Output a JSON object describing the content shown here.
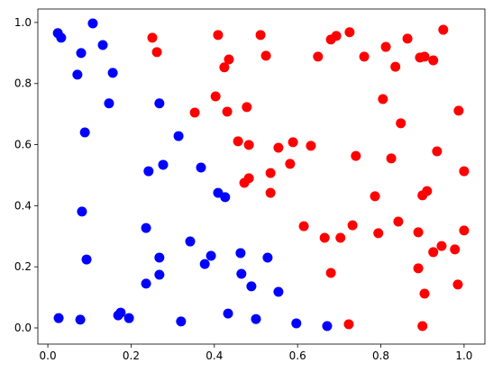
{
  "chart_data": {
    "type": "scatter",
    "xlim": [
      -0.024,
      1.05
    ],
    "ylim": [
      -0.053,
      1.044
    ],
    "xticks": [
      {
        "value": 0,
        "label": "0.0"
      },
      0.2,
      0.4,
      0.6,
      0.8,
      {
        "value": 1,
        "label": "1.0"
      }
    ],
    "yticks": [
      {
        "value": 0,
        "label": "0.0"
      },
      0.2,
      0.4,
      0.6,
      0.8,
      {
        "value": 1,
        "label": "1.0"
      }
    ],
    "series": [
      {
        "color": "#0000ff",
        "x": [
          0.024,
          0.032,
          0.108,
          0.08,
          0.132,
          0.071,
          0.156,
          0.147,
          0.089,
          0.268,
          0.314,
          0.277,
          0.242,
          0.368,
          0.409,
          0.426,
          0.082,
          0.236,
          0.093,
          0.342,
          0.392,
          0.377,
          0.268,
          0.268,
          0.236,
          0.463,
          0.528,
          0.465,
          0.489,
          0.554,
          0.433,
          0.026,
          0.078,
          0.169,
          0.175,
          0.195,
          0.32,
          0.5,
          0.597,
          0.671
        ],
        "values": [
          0.965,
          0.95,
          0.997,
          0.9,
          0.926,
          0.829,
          0.835,
          0.735,
          0.64,
          0.735,
          0.628,
          0.534,
          0.513,
          0.525,
          0.442,
          0.428,
          0.381,
          0.327,
          0.224,
          0.283,
          0.236,
          0.209,
          0.23,
          0.174,
          0.145,
          0.245,
          0.23,
          0.177,
          0.136,
          0.118,
          0.047,
          0.032,
          0.027,
          0.041,
          0.05,
          0.032,
          0.021,
          0.029,
          0.015,
          0.006
        ]
      },
      {
        "color": "#ff0000",
        "x": [
          0.251,
          0.262,
          0.409,
          0.511,
          0.524,
          0.424,
          0.435,
          0.649,
          0.68,
          0.693,
          0.725,
          0.76,
          0.812,
          0.835,
          0.864,
          0.95,
          0.894,
          0.905,
          0.926,
          0.805,
          0.848,
          0.987,
          0.403,
          0.353,
          0.431,
          0.478,
          0.457,
          0.483,
          0.554,
          0.589,
          0.632,
          0.74,
          0.825,
          0.935,
          0.582,
          0.535,
          0.483,
          0.472,
          0.535,
          0.786,
          0.911,
          0.9,
          1.0,
          0.842,
          0.732,
          0.615,
          0.794,
          0.665,
          0.703,
          1.0,
          0.89,
          0.946,
          0.926,
          0.978,
          0.89,
          0.68,
          0.985,
          0.905,
          0.723,
          0.9
        ],
        "values": [
          0.95,
          0.903,
          0.959,
          0.959,
          0.891,
          0.853,
          0.879,
          0.888,
          0.944,
          0.956,
          0.968,
          0.888,
          0.92,
          0.855,
          0.947,
          0.976,
          0.885,
          0.888,
          0.876,
          0.749,
          0.67,
          0.711,
          0.758,
          0.705,
          0.708,
          0.723,
          0.611,
          0.599,
          0.59,
          0.608,
          0.596,
          0.563,
          0.555,
          0.578,
          0.537,
          0.507,
          0.49,
          0.475,
          0.442,
          0.431,
          0.448,
          0.434,
          0.513,
          0.348,
          0.336,
          0.333,
          0.31,
          0.295,
          0.295,
          0.319,
          0.313,
          0.268,
          0.248,
          0.257,
          0.195,
          0.18,
          0.142,
          0.112,
          0.012,
          0.006
        ]
      }
    ]
  }
}
